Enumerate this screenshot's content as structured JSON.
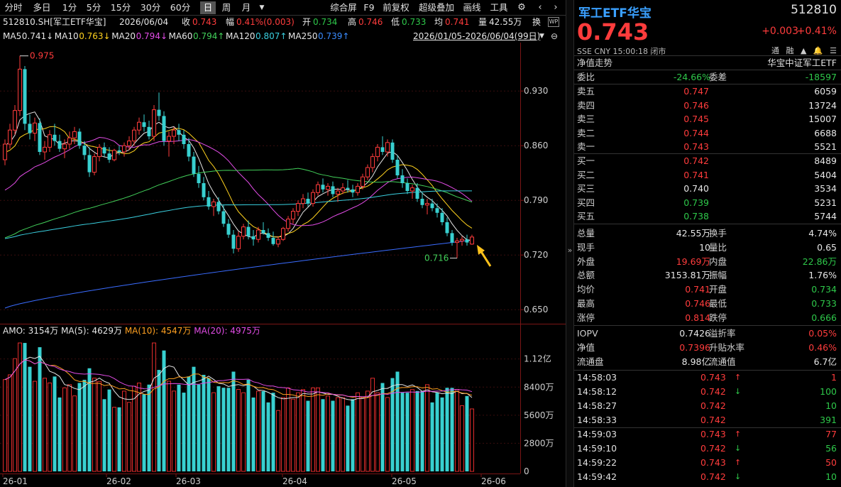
{
  "toolbar": {
    "periods": [
      "分时",
      "多日",
      "1分",
      "5分",
      "15分",
      "30分",
      "60分",
      "日",
      "周",
      "月"
    ],
    "active_period": "日",
    "dropdown_icon": "chevron-down-icon",
    "tools": [
      "综合屏",
      "F9",
      "前复权",
      "超级叠加",
      "画线",
      "工具"
    ],
    "gear_icon": "gear-icon",
    "prev_icon": "chevron-left-icon",
    "next_icon": "chevron-right-icon"
  },
  "infobar": {
    "security": "512810.SH[军工ETF华宝]",
    "date": "2026/06/04",
    "close_label": "收",
    "close": "0.743",
    "amp_label": "幅",
    "amp": "0.41%(0.003)",
    "open_label": "开",
    "open": "0.734",
    "high_label": "高",
    "high": "0.746",
    "low_label": "低",
    "low": "0.733",
    "avg_label": "均",
    "avg": "0.741",
    "vol_label": "量",
    "vol": "42.55万",
    "turn_label": "换"
  },
  "mabar": {
    "items": [
      {
        "label": "MA5",
        "value": "0.741",
        "dir": "↓",
        "color": "#e6e6e6"
      },
      {
        "label": "MA10",
        "value": "0.763",
        "dir": "↓",
        "color": "#ffd21e"
      },
      {
        "label": "MA20",
        "value": "0.794",
        "dir": "↓",
        "color": "#e24ce6"
      },
      {
        "label": "MA60",
        "value": "0.794",
        "dir": "↑",
        "color": "#42d05a"
      },
      {
        "label": "MA120",
        "value": "0.807",
        "dir": "↑",
        "color": "#3ad0e0"
      },
      {
        "label": "MA250",
        "value": "0.739",
        "dir": "↑",
        "color": "#3a8cff"
      }
    ],
    "range": "2026/01/05-2026/06/04(99日)"
  },
  "chart_data": [
    {
      "type": "candlestick",
      "title": "",
      "y_ticks": [
        "0.930",
        "0.860",
        "0.790",
        "0.720",
        "0.650"
      ],
      "y_tick_values": [
        0.93,
        0.86,
        0.79,
        0.72,
        0.65
      ],
      "ylim": [
        0.632,
        0.992
      ],
      "x_ticks": [
        "26-01",
        "26-02",
        "26-03",
        "26-04",
        "26-05",
        "26-06"
      ],
      "annotations": {
        "high_label": "0.975",
        "low_label": "0.716",
        "high_value": 0.975,
        "low_value": 0.716
      },
      "candles": [
        [
          0.842,
          0.868,
          0.835,
          0.862
        ],
        [
          0.862,
          0.888,
          0.856,
          0.88
        ],
        [
          0.88,
          0.912,
          0.874,
          0.905
        ],
        [
          0.905,
          0.975,
          0.898,
          0.958
        ],
        [
          0.958,
          0.962,
          0.88,
          0.888
        ],
        [
          0.888,
          0.9,
          0.868,
          0.876
        ],
        [
          0.876,
          0.896,
          0.866,
          0.889
        ],
        [
          0.889,
          0.895,
          0.848,
          0.852
        ],
        [
          0.852,
          0.866,
          0.842,
          0.858
        ],
        [
          0.858,
          0.88,
          0.852,
          0.874
        ],
        [
          0.874,
          0.888,
          0.86,
          0.866
        ],
        [
          0.866,
          0.874,
          0.852,
          0.856
        ],
        [
          0.856,
          0.868,
          0.844,
          0.862
        ],
        [
          0.862,
          0.878,
          0.856,
          0.87
        ],
        [
          0.87,
          0.884,
          0.862,
          0.878
        ],
        [
          0.878,
          0.882,
          0.856,
          0.86
        ],
        [
          0.86,
          0.866,
          0.842,
          0.848
        ],
        [
          0.848,
          0.858,
          0.82,
          0.826
        ],
        [
          0.826,
          0.85,
          0.822,
          0.846
        ],
        [
          0.846,
          0.862,
          0.84,
          0.858
        ],
        [
          0.858,
          0.864,
          0.846,
          0.85
        ],
        [
          0.85,
          0.858,
          0.838,
          0.842
        ],
        [
          0.842,
          0.856,
          0.84,
          0.854
        ],
        [
          0.854,
          0.86,
          0.848,
          0.852
        ],
        [
          0.852,
          0.864,
          0.846,
          0.86
        ],
        [
          0.86,
          0.872,
          0.854,
          0.866
        ],
        [
          0.866,
          0.884,
          0.86,
          0.88
        ],
        [
          0.88,
          0.896,
          0.874,
          0.89
        ],
        [
          0.89,
          0.9,
          0.878,
          0.884
        ],
        [
          0.884,
          0.892,
          0.868,
          0.872
        ],
        [
          0.872,
          0.912,
          0.866,
          0.906
        ],
        [
          0.906,
          0.928,
          0.892,
          0.898
        ],
        [
          0.898,
          0.904,
          0.86,
          0.866
        ],
        [
          0.866,
          0.878,
          0.846,
          0.872
        ],
        [
          0.872,
          0.884,
          0.862,
          0.88
        ],
        [
          0.88,
          0.888,
          0.866,
          0.874
        ],
        [
          0.874,
          0.88,
          0.856,
          0.862
        ],
        [
          0.862,
          0.87,
          0.84,
          0.846
        ],
        [
          0.846,
          0.852,
          0.82,
          0.824
        ],
        [
          0.824,
          0.834,
          0.806,
          0.812
        ],
        [
          0.812,
          0.82,
          0.79,
          0.794
        ],
        [
          0.794,
          0.802,
          0.778,
          0.782
        ],
        [
          0.782,
          0.792,
          0.77,
          0.788
        ],
        [
          0.788,
          0.794,
          0.772,
          0.776
        ],
        [
          0.776,
          0.784,
          0.756,
          0.76
        ],
        [
          0.76,
          0.766,
          0.742,
          0.746
        ],
        [
          0.746,
          0.752,
          0.722,
          0.728
        ],
        [
          0.728,
          0.75,
          0.724,
          0.744
        ],
        [
          0.744,
          0.76,
          0.74,
          0.756
        ],
        [
          0.756,
          0.764,
          0.74,
          0.744
        ],
        [
          0.744,
          0.752,
          0.732,
          0.74
        ],
        [
          0.74,
          0.756,
          0.736,
          0.752
        ],
        [
          0.752,
          0.762,
          0.746,
          0.748
        ],
        [
          0.748,
          0.754,
          0.738,
          0.742
        ],
        [
          0.742,
          0.75,
          0.732,
          0.734
        ],
        [
          0.734,
          0.744,
          0.73,
          0.74
        ],
        [
          0.74,
          0.756,
          0.738,
          0.754
        ],
        [
          0.754,
          0.77,
          0.75,
          0.766
        ],
        [
          0.766,
          0.78,
          0.76,
          0.776
        ],
        [
          0.776,
          0.79,
          0.77,
          0.786
        ],
        [
          0.786,
          0.798,
          0.78,
          0.792
        ],
        [
          0.792,
          0.8,
          0.782,
          0.786
        ],
        [
          0.786,
          0.804,
          0.782,
          0.8
        ],
        [
          0.8,
          0.814,
          0.796,
          0.81
        ],
        [
          0.81,
          0.818,
          0.8,
          0.804
        ],
        [
          0.804,
          0.812,
          0.796,
          0.808
        ],
        [
          0.808,
          0.814,
          0.794,
          0.798
        ],
        [
          0.798,
          0.806,
          0.788,
          0.802
        ],
        [
          0.802,
          0.812,
          0.798,
          0.806
        ],
        [
          0.806,
          0.816,
          0.8,
          0.804
        ],
        [
          0.804,
          0.81,
          0.794,
          0.8
        ],
        [
          0.8,
          0.812,
          0.796,
          0.808
        ],
        [
          0.808,
          0.824,
          0.804,
          0.82
        ],
        [
          0.82,
          0.836,
          0.816,
          0.832
        ],
        [
          0.832,
          0.85,
          0.826,
          0.846
        ],
        [
          0.846,
          0.862,
          0.84,
          0.858
        ],
        [
          0.858,
          0.872,
          0.848,
          0.852
        ],
        [
          0.852,
          0.868,
          0.846,
          0.864
        ],
        [
          0.864,
          0.868,
          0.838,
          0.842
        ],
        [
          0.842,
          0.848,
          0.818,
          0.822
        ],
        [
          0.822,
          0.83,
          0.806,
          0.812
        ],
        [
          0.812,
          0.818,
          0.798,
          0.802
        ],
        [
          0.802,
          0.81,
          0.792,
          0.806
        ],
        [
          0.806,
          0.812,
          0.788,
          0.792
        ],
        [
          0.792,
          0.8,
          0.78,
          0.784
        ],
        [
          0.784,
          0.792,
          0.772,
          0.786
        ],
        [
          0.786,
          0.792,
          0.776,
          0.78
        ],
        [
          0.78,
          0.786,
          0.768,
          0.774
        ],
        [
          0.774,
          0.78,
          0.758,
          0.762
        ],
        [
          0.762,
          0.768,
          0.744,
          0.748
        ],
        [
          0.748,
          0.752,
          0.732,
          0.736
        ],
        [
          0.736,
          0.742,
          0.716,
          0.738
        ],
        [
          0.738,
          0.744,
          0.732,
          0.74
        ],
        [
          0.74,
          0.746,
          0.732,
          0.736
        ],
        [
          0.734,
          0.746,
          0.733,
          0.743
        ]
      ]
    },
    {
      "type": "bar",
      "title": "",
      "series_labels": [
        "AMO: 3154万",
        "MA(5): 4629万",
        "MA(10): 4547万",
        "MA(20): 4975万"
      ],
      "y_ticks": [
        "1.12亿",
        "8400万",
        "5600万",
        "2800万",
        "0"
      ],
      "y_tick_values": [
        11200,
        8400,
        5600,
        2800,
        0
      ],
      "ylim": [
        0,
        13300
      ],
      "unit": "万"
    }
  ],
  "right": {
    "name": "军工ETF华宝",
    "code": "512810",
    "price": "0.743",
    "change": "+0.003",
    "pct": "+0.41%",
    "meta": "SSE  CNY  15:00:18  闭市",
    "icons": [
      "通",
      "融",
      "▲",
      "bell-icon",
      "menu-icon"
    ],
    "nav_link": "净值走势",
    "index_name": "华宝中证军工ETF",
    "ratio_label": "委比",
    "ratio": "-24.66%",
    "diff_label": "委差",
    "diff": "-18597",
    "asks": [
      {
        "label": "卖五",
        "price": "0.747",
        "vol": "6059"
      },
      {
        "label": "卖四",
        "price": "0.746",
        "vol": "13724"
      },
      {
        "label": "卖三",
        "price": "0.745",
        "vol": "15007"
      },
      {
        "label": "卖二",
        "price": "0.744",
        "vol": "6688"
      },
      {
        "label": "卖一",
        "price": "0.743",
        "vol": "5521"
      }
    ],
    "bids": [
      {
        "label": "买一",
        "price": "0.742",
        "vol": "8489",
        "color": "#ff3c3c"
      },
      {
        "label": "买二",
        "price": "0.741",
        "vol": "5404",
        "color": "#ff3c3c"
      },
      {
        "label": "买三",
        "price": "0.740",
        "vol": "3534",
        "color": "#e6e6e6"
      },
      {
        "label": "买四",
        "price": "0.739",
        "vol": "5231",
        "color": "#2ec84a"
      },
      {
        "label": "买五",
        "price": "0.738",
        "vol": "5744",
        "color": "#2ec84a"
      }
    ],
    "stats": [
      {
        "l1": "总量",
        "v1": "42.55万",
        "c1": "#e6e6e6",
        "l2": "换手",
        "v2": "4.74%",
        "c2": "#e6e6e6"
      },
      {
        "l1": "现手",
        "v1": "10",
        "c1": "#e6e6e6",
        "l2": "量比",
        "v2": "0.65",
        "c2": "#e6e6e6"
      },
      {
        "l1": "外盘",
        "v1": "19.69万",
        "c1": "#ff3c3c",
        "l2": "内盘",
        "v2": "22.86万",
        "c2": "#2ec84a"
      },
      {
        "l1": "总额",
        "v1": "3153.81万",
        "c1": "#e6e6e6",
        "l2": "振幅",
        "v2": "1.76%",
        "c2": "#e6e6e6"
      },
      {
        "l1": "均价",
        "v1": "0.741",
        "c1": "#ff3c3c",
        "l2": "开盘",
        "v2": "0.734",
        "c2": "#2ec84a"
      },
      {
        "l1": "最高",
        "v1": "0.746",
        "c1": "#ff3c3c",
        "l2": "最低",
        "v2": "0.733",
        "c2": "#2ec84a"
      },
      {
        "l1": "涨停",
        "v1": "0.814",
        "c1": "#ff3c3c",
        "l2": "跌停",
        "v2": "0.666",
        "c2": "#2ec84a"
      }
    ],
    "iopv": [
      {
        "l1": "IOPV",
        "v1": "0.7426",
        "c1": "#e6e6e6",
        "l2": "溢折率",
        "v2": "0.05%",
        "c2": "#ff3c3c"
      },
      {
        "l1": "净值",
        "v1": "0.7396",
        "c1": "#ff3c3c",
        "l2": "升贴水率",
        "v2": "0.46%",
        "c2": "#ff3c3c"
      },
      {
        "l1": "流通盘",
        "v1": "8.98亿",
        "c1": "#e6e6e6",
        "l2": "流通值",
        "v2": "6.7亿",
        "c2": "#e6e6e6"
      }
    ],
    "ticks": [
      {
        "time": "14:58:03",
        "price": "0.743",
        "arrow": "↑",
        "vol": "1",
        "color": "#ff3c3c"
      },
      {
        "time": "14:58:12",
        "price": "0.742",
        "arrow": "↓",
        "vol": "100",
        "color": "#2ec84a"
      },
      {
        "time": "14:58:27",
        "price": "0.742",
        "arrow": "",
        "vol": "10",
        "color": "#2ec84a"
      },
      {
        "time": "14:58:33",
        "price": "0.742",
        "arrow": "",
        "vol": "391",
        "color": "#2ec84a"
      },
      {
        "time": "14:59:03",
        "price": "0.743",
        "arrow": "↑",
        "vol": "77",
        "color": "#ff3c3c"
      },
      {
        "time": "14:59:10",
        "price": "0.742",
        "arrow": "↓",
        "vol": "56",
        "color": "#2ec84a"
      },
      {
        "time": "14:59:22",
        "price": "0.743",
        "arrow": "↑",
        "vol": "50",
        "color": "#ff3c3c"
      },
      {
        "time": "14:59:42",
        "price": "0.742",
        "arrow": "↓",
        "vol": "10",
        "color": "#2ec84a"
      }
    ]
  }
}
